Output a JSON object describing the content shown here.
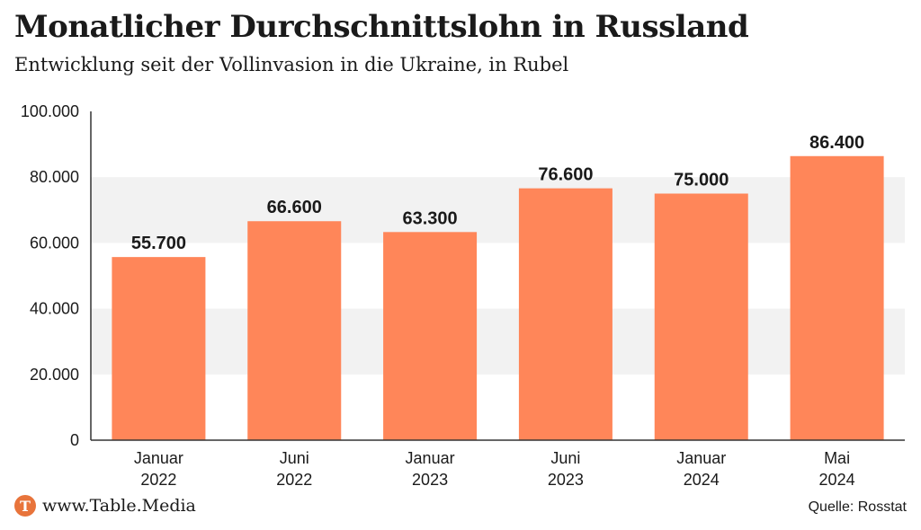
{
  "chart_data": {
    "type": "bar",
    "title": "Monatlicher Durchschnittslohn in Russland",
    "subtitle": "Entwicklung seit der Vollinvasion in die Ukraine, in Rubel",
    "categories": [
      [
        "Januar",
        "2022"
      ],
      [
        "Juni",
        "2022"
      ],
      [
        "Januar",
        "2023"
      ],
      [
        "Juni",
        "2023"
      ],
      [
        "Januar",
        "2024"
      ],
      [
        "Mai",
        "2024"
      ]
    ],
    "values": [
      55700,
      66600,
      63300,
      76600,
      75000,
      86400
    ],
    "value_labels": [
      "55.700",
      "66.600",
      "63.300",
      "76.600",
      "75.000",
      "86.400"
    ],
    "ylim": [
      0,
      100000
    ],
    "yticks": [
      0,
      20000,
      40000,
      60000,
      80000,
      100000
    ],
    "ytick_labels": [
      "0",
      "20.000",
      "40.000",
      "60.000",
      "80.000",
      "100.000"
    ],
    "bar_color": "#ff8659",
    "band_color": "#f2f2f2",
    "xlabel": "",
    "ylabel": ""
  },
  "footer": {
    "logo_letter": "T",
    "brand": "www.Table.Media",
    "source": "Quelle: Rosstat"
  }
}
